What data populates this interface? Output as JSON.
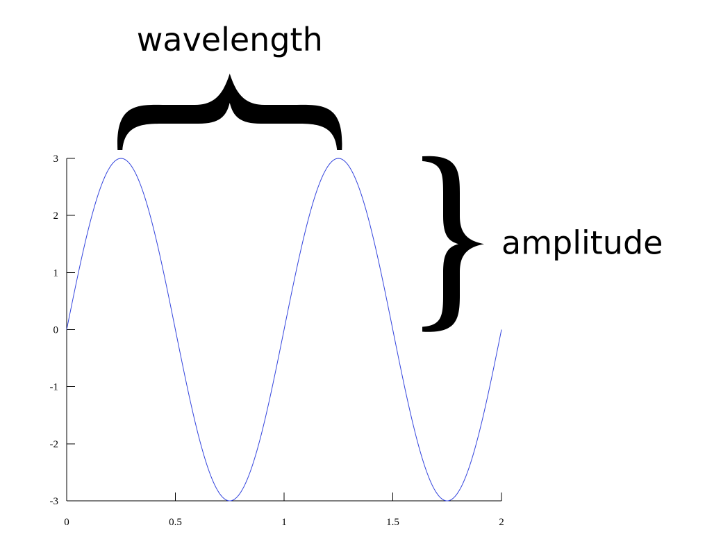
{
  "chart_data": {
    "type": "line",
    "title": "",
    "xlabel": "",
    "ylabel": "",
    "xlim": [
      0,
      2
    ],
    "ylim": [
      -3,
      3
    ],
    "grid": false,
    "x_ticks": [
      0,
      0.5,
      1,
      1.5,
      2
    ],
    "x_tick_labels": [
      "0",
      "0.5",
      "1",
      "1.5",
      "2"
    ],
    "y_ticks": [
      3,
      2,
      1,
      0,
      -1,
      -2,
      -3
    ],
    "y_tick_labels": [
      "3",
      "2",
      "1",
      "0",
      "-1",
      "-2",
      "-3"
    ],
    "series": [
      {
        "function": "y = 3*sin(2*pi*x)",
        "color": "#3344dd",
        "x": [
          0,
          0.0625,
          0.125,
          0.1875,
          0.25,
          0.3125,
          0.375,
          0.4375,
          0.5,
          0.5625,
          0.625,
          0.6875,
          0.75,
          0.8125,
          0.875,
          0.9375,
          1,
          1.0625,
          1.125,
          1.1875,
          1.25,
          1.3125,
          1.375,
          1.4375,
          1.5,
          1.5625,
          1.625,
          1.6875,
          1.75,
          1.8125,
          1.875,
          1.9375,
          2
        ],
        "y": [
          0,
          1.148,
          2.121,
          2.772,
          3,
          2.772,
          2.121,
          1.148,
          0,
          -1.148,
          -2.121,
          -2.772,
          -3,
          -2.772,
          -2.121,
          -1.148,
          0,
          1.148,
          2.121,
          2.772,
          3,
          2.772,
          2.121,
          1.148,
          0,
          -1.148,
          -2.121,
          -2.772,
          -3,
          -2.772,
          -2.121,
          -1.148,
          0
        ]
      }
    ],
    "annotations": [
      {
        "text": "wavelength",
        "spans_x": [
          0.25,
          1.25
        ]
      },
      {
        "text": "amplitude",
        "spans_y": [
          0,
          3
        ]
      }
    ]
  }
}
